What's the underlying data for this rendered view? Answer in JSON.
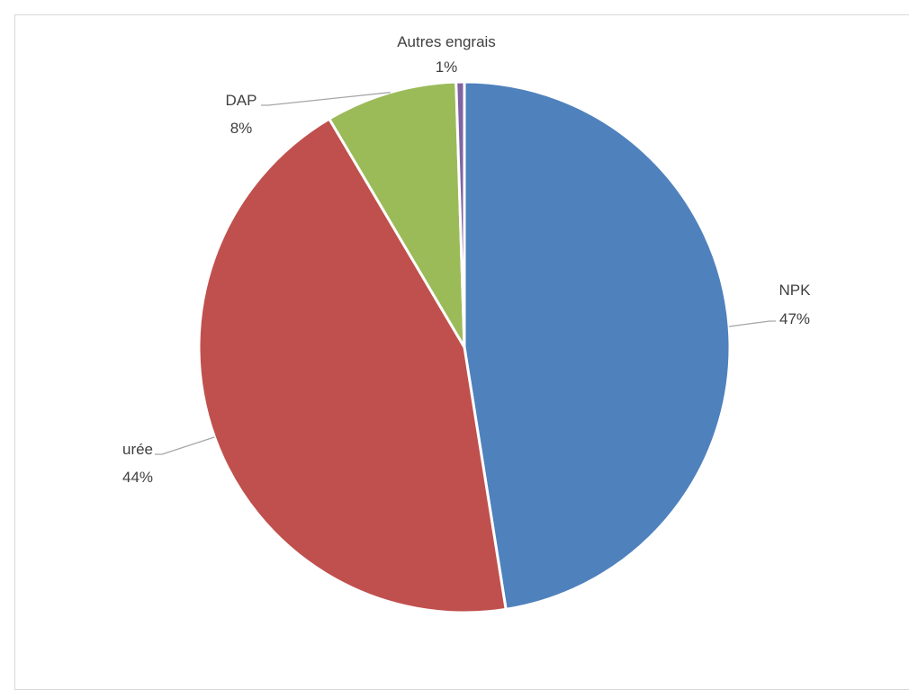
{
  "chart_data": {
    "type": "pie",
    "title": "",
    "categories": [
      "NPK",
      "urée",
      "DAP",
      "Autres engrais"
    ],
    "values": [
      47.5,
      44.0,
      8.0,
      0.5
    ],
    "labels": [
      {
        "name": "NPK",
        "pct": "47%"
      },
      {
        "name": "urée",
        "pct": "44%"
      },
      {
        "name": "DAP",
        "pct": "8%"
      },
      {
        "name": "Autres engrais",
        "pct": "1%"
      }
    ],
    "colors": [
      "#4f81bd",
      "#c0504d",
      "#9bbb59",
      "#8064a2"
    ],
    "start_angle_deg": 0,
    "direction": "clockwise",
    "legend": "none",
    "data_labels": "outside-with-leader-lines"
  }
}
